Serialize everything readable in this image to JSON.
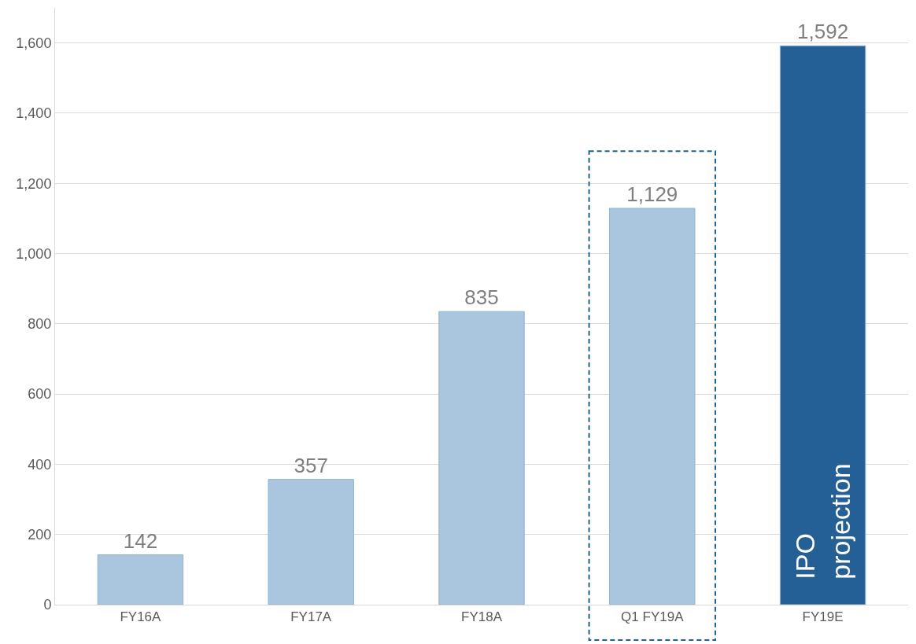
{
  "chart_data": {
    "type": "bar",
    "categories": [
      "FY16A",
      "FY17A",
      "FY18A",
      "Q1 FY19A",
      "FY19E"
    ],
    "values": [
      142,
      357,
      835,
      1129,
      1592
    ],
    "colors": [
      "#a9c6de",
      "#a9c6de",
      "#a9c6de",
      "#a9c6de",
      "#245f96"
    ],
    "value_labels": [
      "142",
      "357",
      "835",
      "1,129",
      "1,592"
    ],
    "ylim": [
      0,
      1700
    ],
    "yticks": [
      {
        "value": 0,
        "label": "0"
      },
      {
        "value": 200,
        "label": "200"
      },
      {
        "value": 400,
        "label": "400"
      },
      {
        "value": 600,
        "label": "600"
      },
      {
        "value": 800,
        "label": "800"
      },
      {
        "value": 1000,
        "label": "1,000"
      },
      {
        "value": 1200,
        "label": "1,200"
      },
      {
        "value": 1400,
        "label": "1,400"
      },
      {
        "value": 1600,
        "label": "1,600"
      }
    ],
    "grid": "y",
    "annotations": [
      "IPO projection"
    ]
  }
}
